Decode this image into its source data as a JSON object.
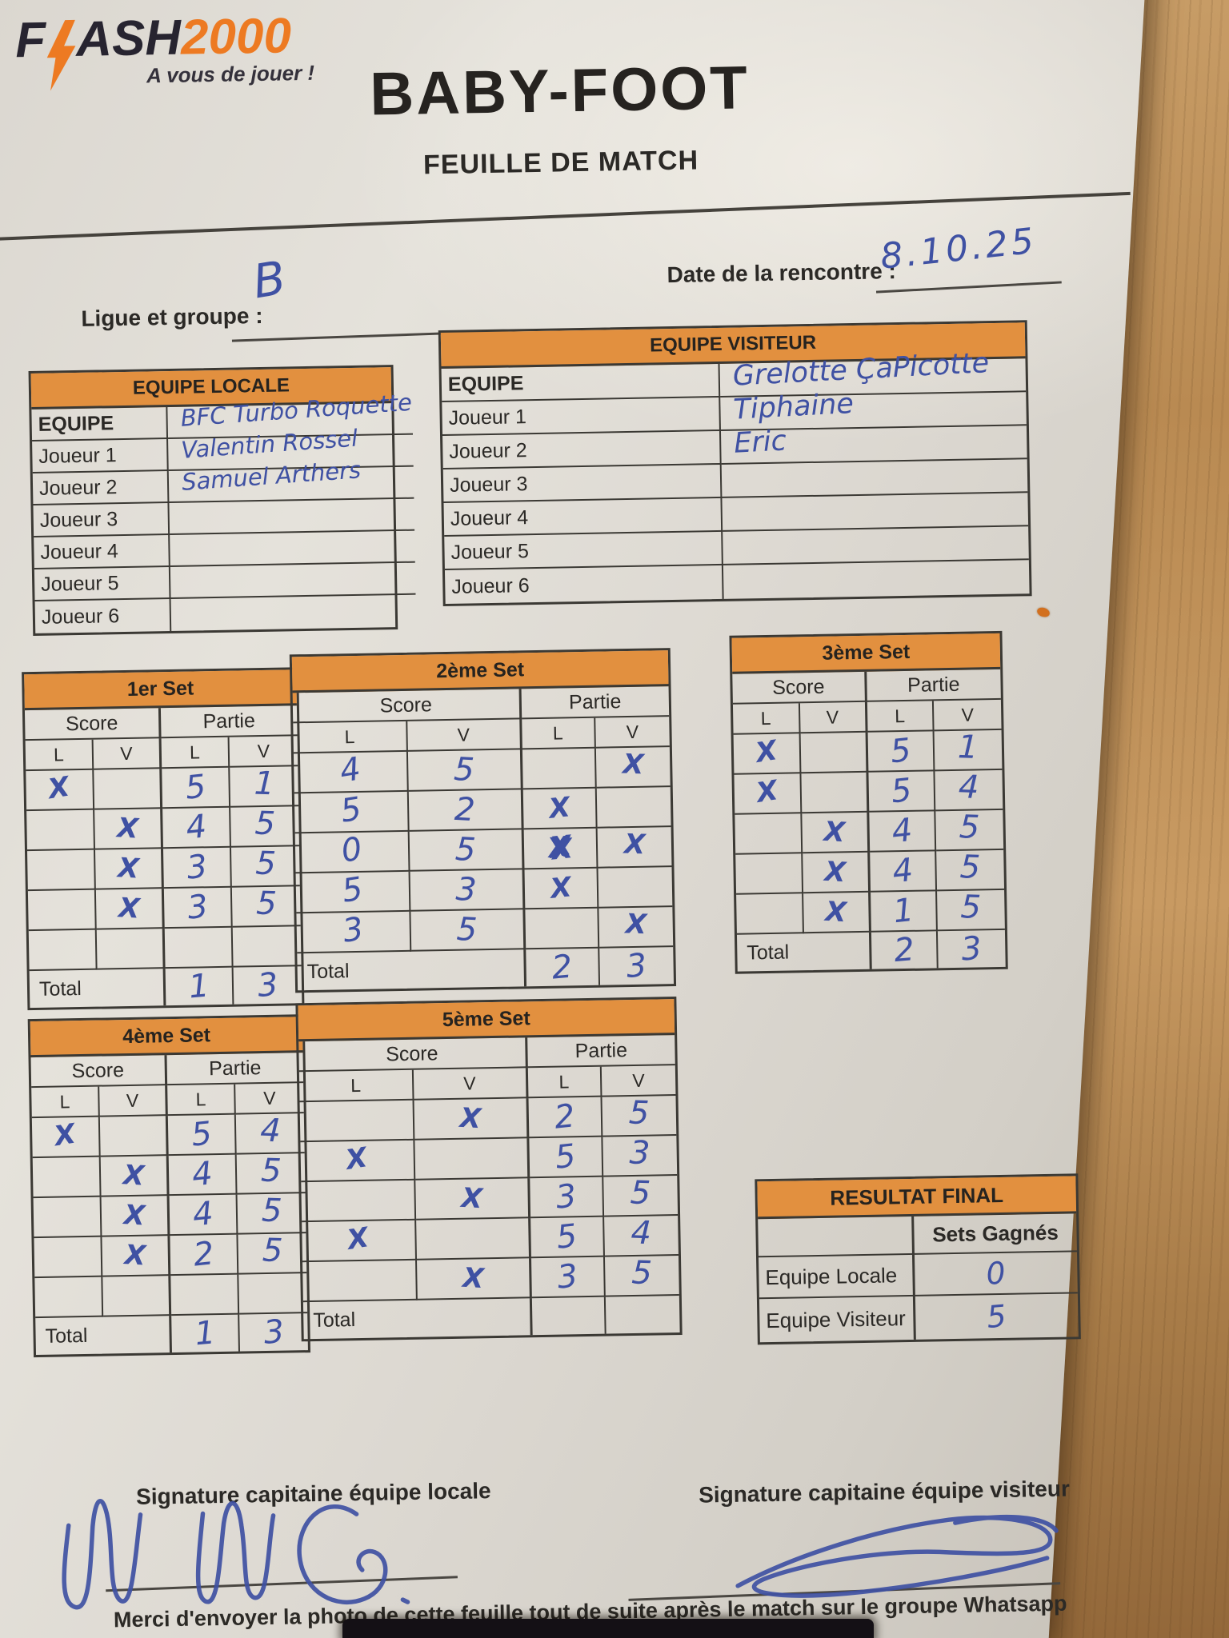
{
  "colors": {
    "accent_orange": "#E2903F",
    "logo_orange": "#ED7A22",
    "ink_blue": "#3F51A3",
    "paper": "#DCD8D1",
    "wood": "#B8894F",
    "line_dark": "#3B3934"
  },
  "logo": {
    "word_start": "F",
    "lightning_icon": "lightning-bolt",
    "word_end": "ASH",
    "year": "2000",
    "tagline": "A vous de jouer !"
  },
  "header": {
    "title": "BABY-FOOT",
    "subtitle": "FEUILLE DE MATCH"
  },
  "fields": {
    "league_label": "Ligue et groupe :",
    "league_value": "B",
    "date_label": "Date de la rencontre :",
    "date_value": "8.10.25"
  },
  "teams": {
    "local": {
      "header": "EQUIPE LOCALE",
      "rows": [
        {
          "label": "EQUIPE",
          "value": "BFC Turbo Roquette"
        },
        {
          "label": "Joueur 1",
          "value": "Valentin Rossel"
        },
        {
          "label": "Joueur 2",
          "value": "Samuel Arthers"
        },
        {
          "label": "Joueur 3",
          "value": ""
        },
        {
          "label": "Joueur 4",
          "value": ""
        },
        {
          "label": "Joueur 5",
          "value": ""
        },
        {
          "label": "Joueur 6",
          "value": ""
        }
      ]
    },
    "visitor": {
      "header": "EQUIPE VISITEUR",
      "rows": [
        {
          "label": "EQUIPE",
          "value": "Grelotte ÇaPicotte"
        },
        {
          "label": "Joueur 1",
          "value": "Tiphaine"
        },
        {
          "label": "Joueur 2",
          "value": "Eric"
        },
        {
          "label": "Joueur 3",
          "value": ""
        },
        {
          "label": "Joueur 4",
          "value": ""
        },
        {
          "label": "Joueur 5",
          "value": ""
        },
        {
          "label": "Joueur 6",
          "value": ""
        }
      ]
    }
  },
  "sets": [
    {
      "title": "1er Set",
      "group_headers": [
        "Score",
        "Partie"
      ],
      "col_letters": [
        "L",
        "V",
        "L",
        "V"
      ],
      "rows": [
        [
          "X",
          "",
          "5",
          "1"
        ],
        [
          "",
          "X",
          "4",
          "5"
        ],
        [
          "",
          "X",
          "3",
          "5"
        ],
        [
          "",
          "X",
          "3",
          "5"
        ],
        [
          "",
          "",
          "",
          ""
        ]
      ],
      "total_label": "Total",
      "totals": [
        "1",
        "3"
      ]
    },
    {
      "title": "2ème Set",
      "group_headers": [
        "Score",
        "Partie"
      ],
      "col_letters": [
        "L",
        "V",
        "L",
        "V"
      ],
      "rows": [
        [
          "4",
          "5",
          "",
          "X"
        ],
        [
          "5",
          "2",
          "X",
          ""
        ],
        [
          "0",
          "5",
          {
            "t": "X",
            "crossed": true
          },
          "X"
        ],
        [
          "5",
          "3",
          "X",
          ""
        ],
        [
          "3",
          "5",
          "",
          "X"
        ]
      ],
      "total_label": "Total",
      "totals": [
        "2",
        "3"
      ]
    },
    {
      "title": "3ème Set",
      "group_headers": [
        "Score",
        "Partie"
      ],
      "col_letters": [
        "L",
        "V",
        "L",
        "V"
      ],
      "rows": [
        [
          "X",
          "",
          "5",
          "1"
        ],
        [
          "X",
          "",
          "5",
          "4"
        ],
        [
          "",
          "X",
          "4",
          "5"
        ],
        [
          "",
          "X",
          "4",
          "5"
        ],
        [
          "",
          "X",
          "1",
          "5"
        ]
      ],
      "total_label": "Total",
      "totals": [
        "2",
        "3"
      ]
    },
    {
      "title": "4ème Set",
      "group_headers": [
        "Score",
        "Partie"
      ],
      "col_letters": [
        "L",
        "V",
        "L",
        "V"
      ],
      "rows": [
        [
          "X",
          "",
          "5",
          "4"
        ],
        [
          "",
          "X",
          "4",
          "5"
        ],
        [
          "",
          "X",
          "4",
          "5"
        ],
        [
          "",
          "X",
          "2",
          "5"
        ],
        [
          "",
          "",
          "",
          ""
        ]
      ],
      "total_label": "Total",
      "totals": [
        "1",
        "3"
      ]
    },
    {
      "title": "5ème Set",
      "group_headers": [
        "Score",
        "Partie"
      ],
      "col_letters": [
        "L",
        "V",
        "L",
        "V"
      ],
      "rows": [
        [
          "",
          "X",
          "2",
          "5"
        ],
        [
          "X",
          "",
          "5",
          "3"
        ],
        [
          "",
          "X",
          "3",
          "5"
        ],
        [
          "X",
          "",
          "5",
          "4"
        ],
        [
          "",
          "X",
          "3",
          "5"
        ]
      ],
      "total_label": "Total",
      "totals": [
        "",
        ""
      ]
    }
  ],
  "final_result": {
    "header": "RESULTAT FINAL",
    "col_header": "Sets Gagnés",
    "rows": [
      {
        "label": "Equipe Locale",
        "value": "0"
      },
      {
        "label": "Equipe Visiteur",
        "value": "5"
      }
    ]
  },
  "signatures": {
    "local_label": "Signature capitaine équipe locale",
    "visitor_label": "Signature capitaine équipe visiteur"
  },
  "footer_note": "Merci d'envoyer la photo de cette feuille tout de suite après le match sur le groupe Whatsapp"
}
